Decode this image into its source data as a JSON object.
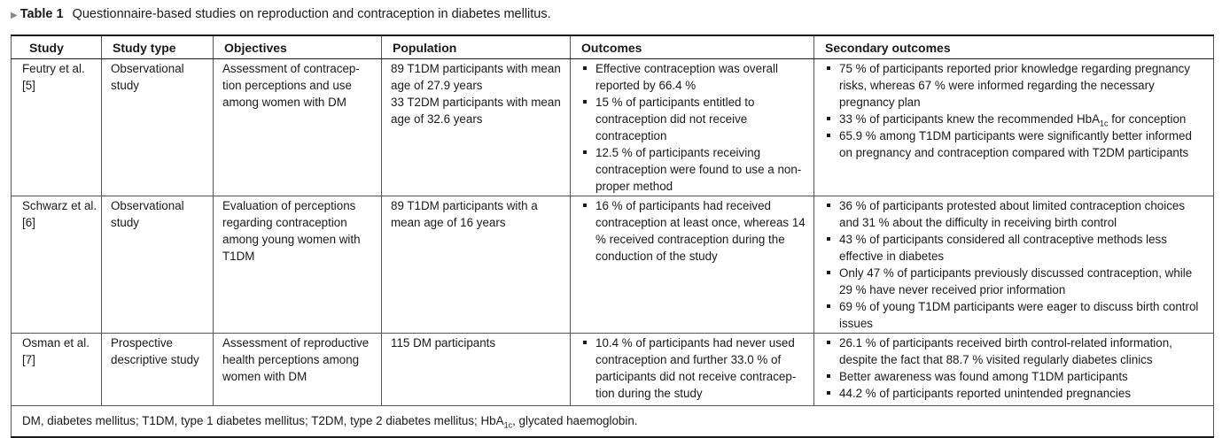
{
  "caption": {
    "label": "Table 1",
    "title": "Questionnaire-based studies on reproduction and contraception in diabetes mellitus."
  },
  "headers": [
    "Study",
    "Study type",
    "Objectives",
    "Population",
    "Outcomes",
    "Secondary outcomes"
  ],
  "rows": [
    {
      "study": "Feutry et al. [5]",
      "type": "Observational study",
      "objectives": "Assessment of contracep-tion perceptions and use among women with DM",
      "population": [
        "89 T1DM participants with mean age of 27.9 years",
        "33 T2DM participants with mean age of 32.6 years"
      ],
      "outcomes": [
        "Effective contraception was overall reported by 66.4 %",
        "15 % of participants entitled to contraception did not receive contraception",
        "12.5 % of participants receiving contraception were found to use a non-proper method"
      ],
      "secondary": [
        "75 % of participants reported prior knowledge regarding pregnancy risks, whereas 67 % were informed regarding the necessary pregnancy plan",
        "33 % of participants knew the recommended HbA1c for conception",
        "65.9 % among T1DM participants were significantly better informed on pregnancy and contraception compared with T2DM participants"
      ]
    },
    {
      "study": "Schwarz et al. [6]",
      "type": "Observational study",
      "objectives": "Evaluation of perceptions regarding contraception among young women with T1DM",
      "population": [
        "89 T1DM participants with a mean age of 16 years"
      ],
      "outcomes": [
        "16 % of participants had received contraception at least once, whereas 14 % received contraception during the conduction of the study"
      ],
      "secondary": [
        "36 % of participants protested about limited contraception choices and 31 % about the difficulty in receiving birth control",
        "43 % of participants considered all contraceptive methods less effective in diabetes",
        "Only 47 % of participants previously discussed contraception, while 29 % have never received prior information",
        "69 % of young T1DM participants were eager to discuss birth control issues"
      ]
    },
    {
      "study": "Osman et al. [7]",
      "type": "Prospective descriptive study",
      "objectives": "Assessment of reproductive health perceptions among women with DM",
      "population": [
        "115 DM participants"
      ],
      "outcomes": [
        "10.4 % of participants had never used contraception and further 33.0 % of participants did not receive contracep-tion during the study"
      ],
      "secondary": [
        "26.1 % of participants received birth control-related information, despite the fact that 88.7 % visited regularly diabetes clinics",
        "Better awareness was found among T1DM participants",
        "44.2 % of participants reported unintended pregnancies"
      ]
    }
  ],
  "footnote": "DM, diabetes mellitus; T1DM, type 1 diabetes mellitus; T2DM, type 2 diabetes mellitus; HbA1c, glycated haemoglobin."
}
